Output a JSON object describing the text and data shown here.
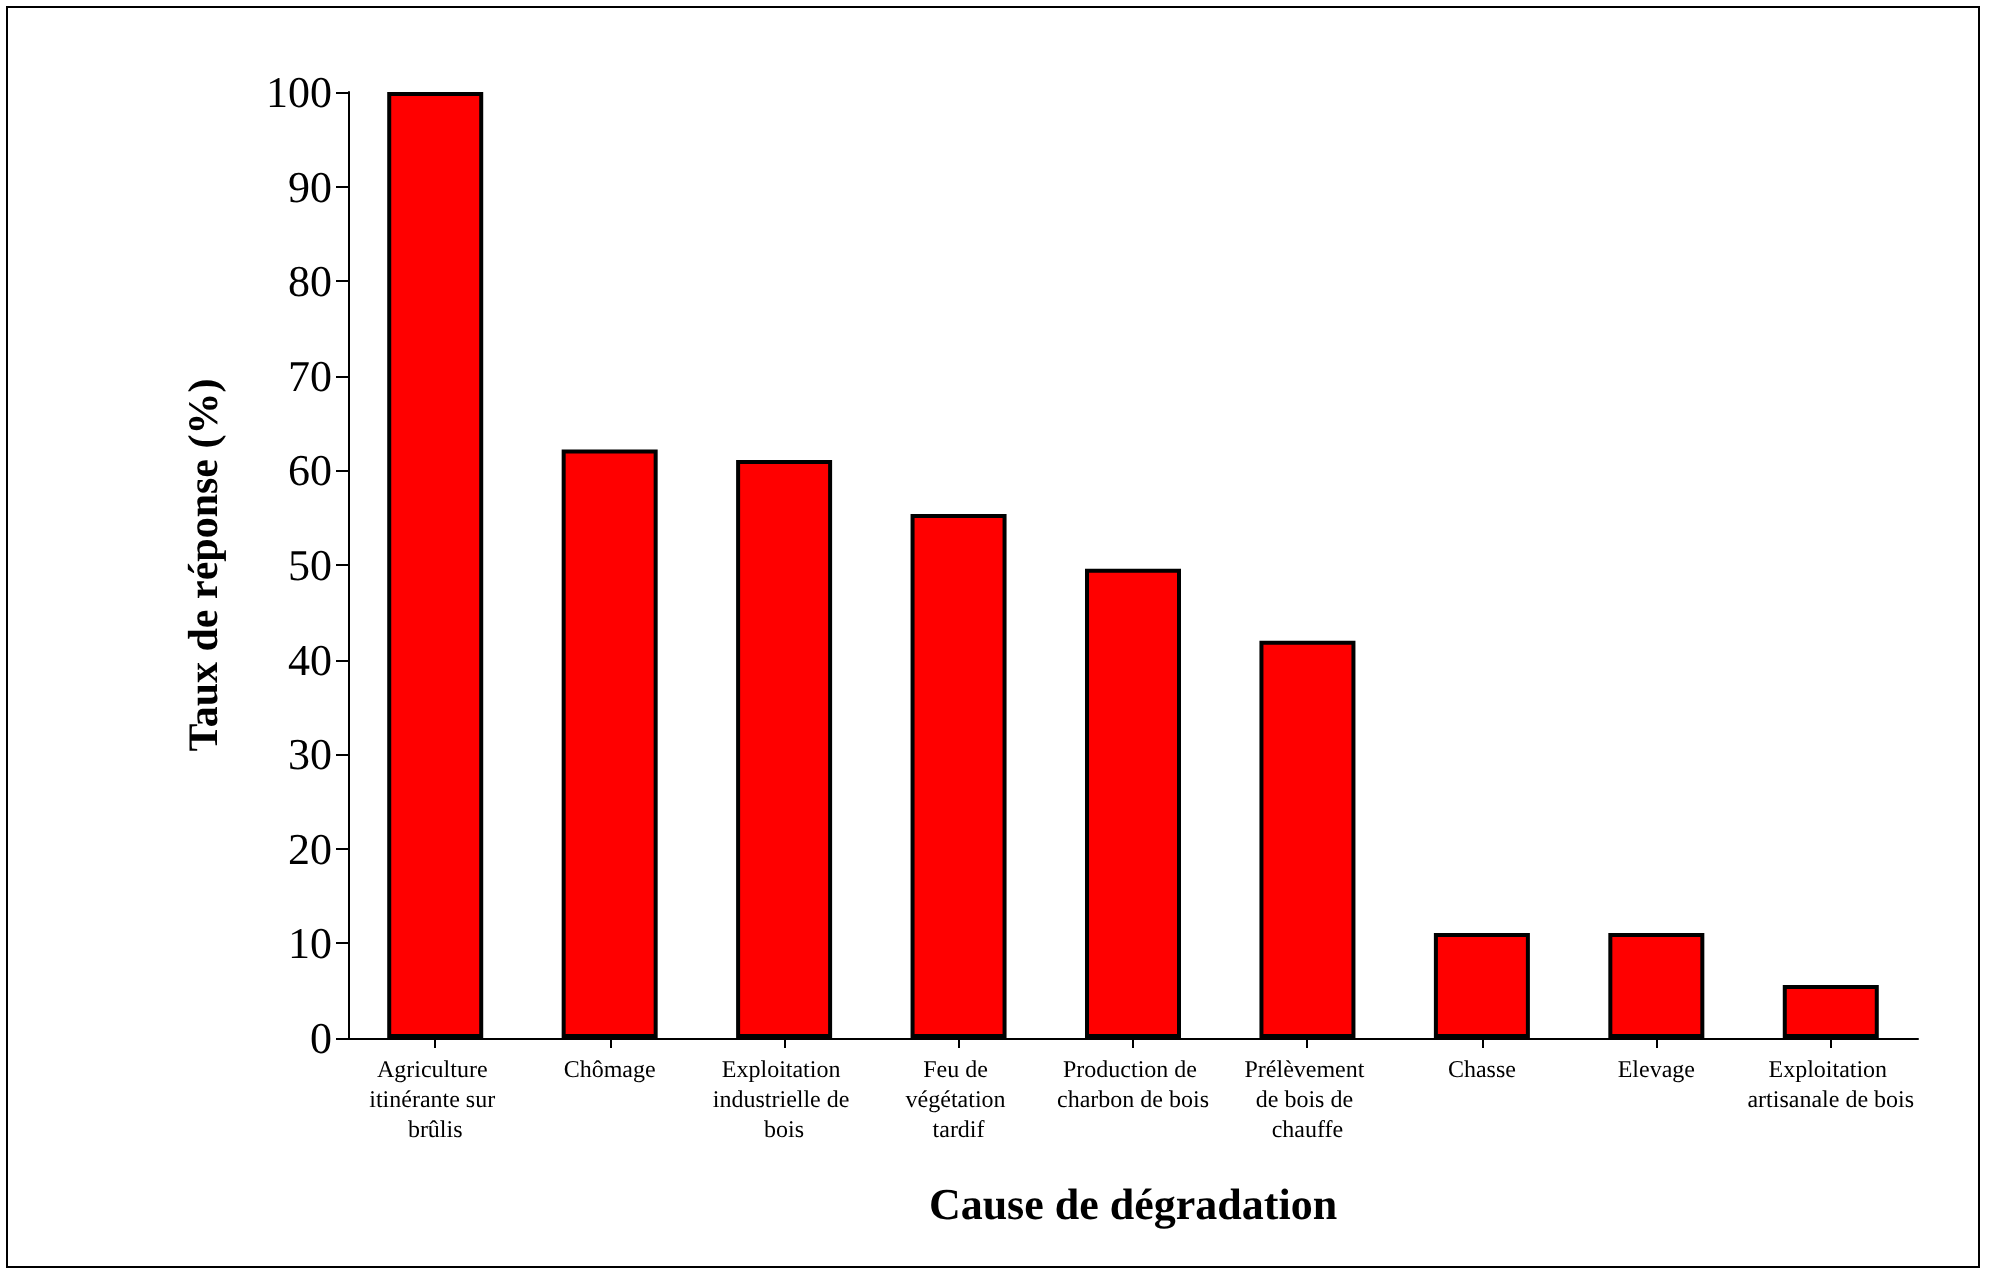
{
  "chart_data": {
    "type": "bar",
    "xlabel": "Cause de dégradation",
    "ylabel": "Taux de réponse (%)",
    "categories": [
      "Agriculture itinérante sur brûlis",
      "Chômage",
      "Exploitation industrielle de bois",
      "Feu de végétation tardif",
      "Production de charbon de bois",
      "Prélèvement de bois de chauffe",
      "Chasse",
      "Elevage",
      "Exploitation artisanale de bois"
    ],
    "values": [
      100,
      62.2,
      61.1,
      55.4,
      49.6,
      42,
      11.1,
      11.1,
      5.6
    ],
    "color": "#ff0000",
    "ylim": [
      0,
      100
    ],
    "yticks": [
      0,
      10,
      20,
      30,
      40,
      50,
      60,
      70,
      80,
      90,
      100
    ],
    "grid": false
  }
}
